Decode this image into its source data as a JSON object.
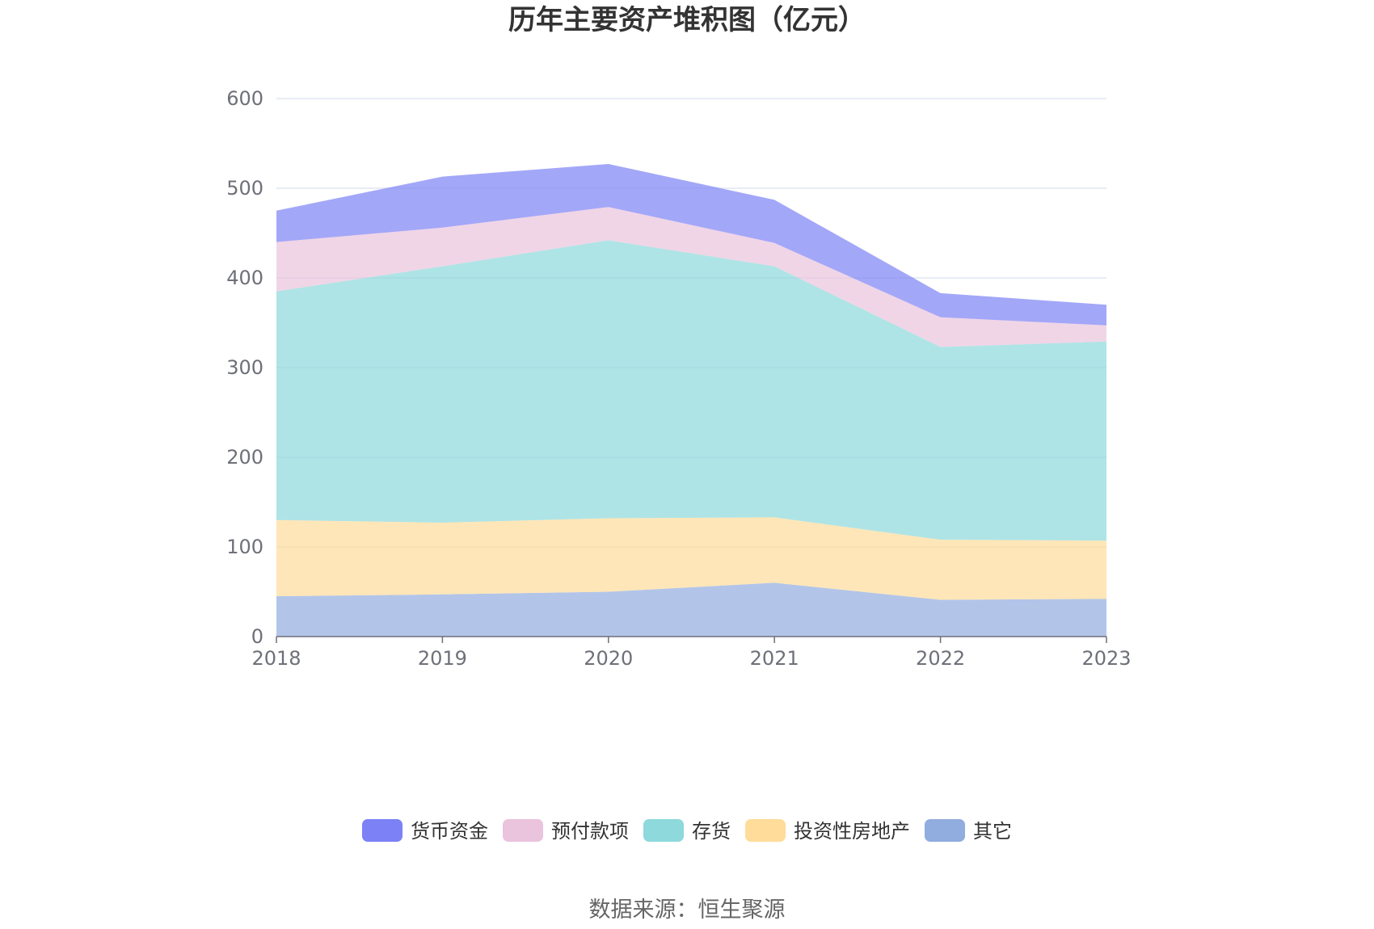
{
  "chart_data": {
    "type": "area",
    "stacked": true,
    "title": "历年主要资产堆积图（亿元）",
    "x": [
      "2018",
      "2019",
      "2020",
      "2021",
      "2022",
      "2023"
    ],
    "ylim": [
      0,
      600
    ],
    "yticks": [
      "0",
      "100",
      "200",
      "300",
      "400",
      "500",
      "600"
    ],
    "grid": true,
    "legend_position": "bottom",
    "series": [
      {
        "name": "其它",
        "color": "#91acdf",
        "values": [
          45,
          47,
          50,
          60,
          41,
          42
        ]
      },
      {
        "name": "投资性房地产",
        "color": "#ffdc9a",
        "values": [
          85,
          80,
          82,
          73,
          67,
          65
        ]
      },
      {
        "name": "存货",
        "color": "#8dd9dc",
        "values": [
          255,
          286,
          310,
          280,
          215,
          222
        ]
      },
      {
        "name": "预付款项",
        "color": "#eac3dd",
        "values": [
          55,
          43,
          37,
          26,
          33,
          18
        ]
      },
      {
        "name": "货币资金",
        "color": "#7c81f5",
        "values": [
          35,
          57,
          48,
          48,
          27,
          23
        ]
      }
    ],
    "legend_order": [
      "货币资金",
      "预付款项",
      "存货",
      "投资性房地产",
      "其它"
    ]
  },
  "footer": {
    "source": "数据来源：恒生聚源"
  }
}
